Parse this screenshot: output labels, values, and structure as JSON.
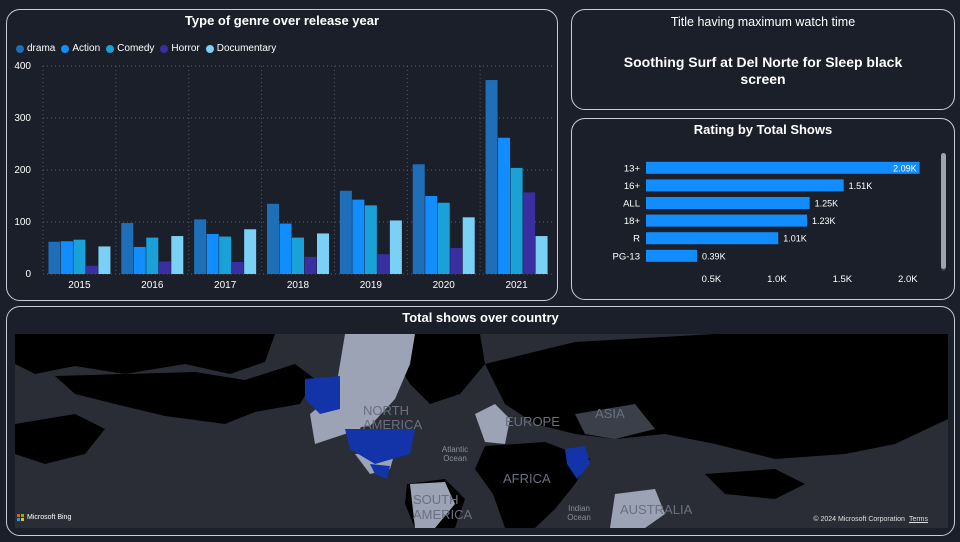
{
  "genre_panel": {
    "title": "Type of genre over release year",
    "legend": [
      {
        "name": "drama",
        "color": "#1f6fb8"
      },
      {
        "name": "Action",
        "color": "#118dff"
      },
      {
        "name": "Comedy",
        "color": "#1aa1d8"
      },
      {
        "name": "Horror",
        "color": "#3a2fa0"
      },
      {
        "name": "Documentary",
        "color": "#7ad0f5"
      }
    ]
  },
  "max_watch_panel": {
    "title": "Title having maximum watch time",
    "value": "Soothing Surf at Del Norte for Sleep black screen"
  },
  "rating_panel": {
    "title": "Rating by Total Shows"
  },
  "map_panel": {
    "title": "Total shows over country",
    "labels": [
      "NORTH AMERICA",
      "EUROPE",
      "ASIA",
      "AFRICA",
      "SOUTH AMERICA",
      "AUSTRALIA",
      "Atlantic Ocean",
      "Indian Ocean"
    ],
    "attribution": "Microsoft Bing",
    "copyright": "© 2024 Microsoft Corporation",
    "terms": "Terms",
    "highlight_color": "#1234a8"
  },
  "chart_data": [
    {
      "type": "bar",
      "title": "Type of genre over release year",
      "categories": [
        "2015",
        "2016",
        "2017",
        "2018",
        "2019",
        "2020",
        "2021"
      ],
      "series": [
        {
          "name": "drama",
          "values": [
            62,
            98,
            105,
            135,
            160,
            211,
            373
          ]
        },
        {
          "name": "Action",
          "values": [
            63,
            52,
            77,
            97,
            143,
            150,
            262
          ]
        },
        {
          "name": "Comedy",
          "values": [
            66,
            70,
            72,
            70,
            132,
            137,
            204
          ]
        },
        {
          "name": "Horror",
          "values": [
            16,
            24,
            23,
            33,
            38,
            50,
            157
          ]
        },
        {
          "name": "Documentary",
          "values": [
            53,
            73,
            86,
            78,
            103,
            109,
            73
          ]
        }
      ],
      "yticks": [
        "0",
        "100",
        "200",
        "300",
        "400"
      ],
      "ylim": [
        0,
        400
      ],
      "grid": true,
      "legend": "top-left"
    },
    {
      "type": "bar",
      "orientation": "horizontal",
      "title": "Rating by Total Shows",
      "categories": [
        "13+",
        "16+",
        "ALL",
        "18+",
        "R",
        "PG-13"
      ],
      "values": [
        2090,
        1510,
        1250,
        1230,
        1010,
        390
      ],
      "labels": [
        "2.09K",
        "1.51K",
        "1.25K",
        "1.23K",
        "1.01K",
        "0.39K"
      ],
      "xticks": [
        "0.5K",
        "1.0K",
        "1.5K",
        "2.0K"
      ],
      "xlim": [
        0,
        2200
      ],
      "color": "#118dff"
    }
  ]
}
